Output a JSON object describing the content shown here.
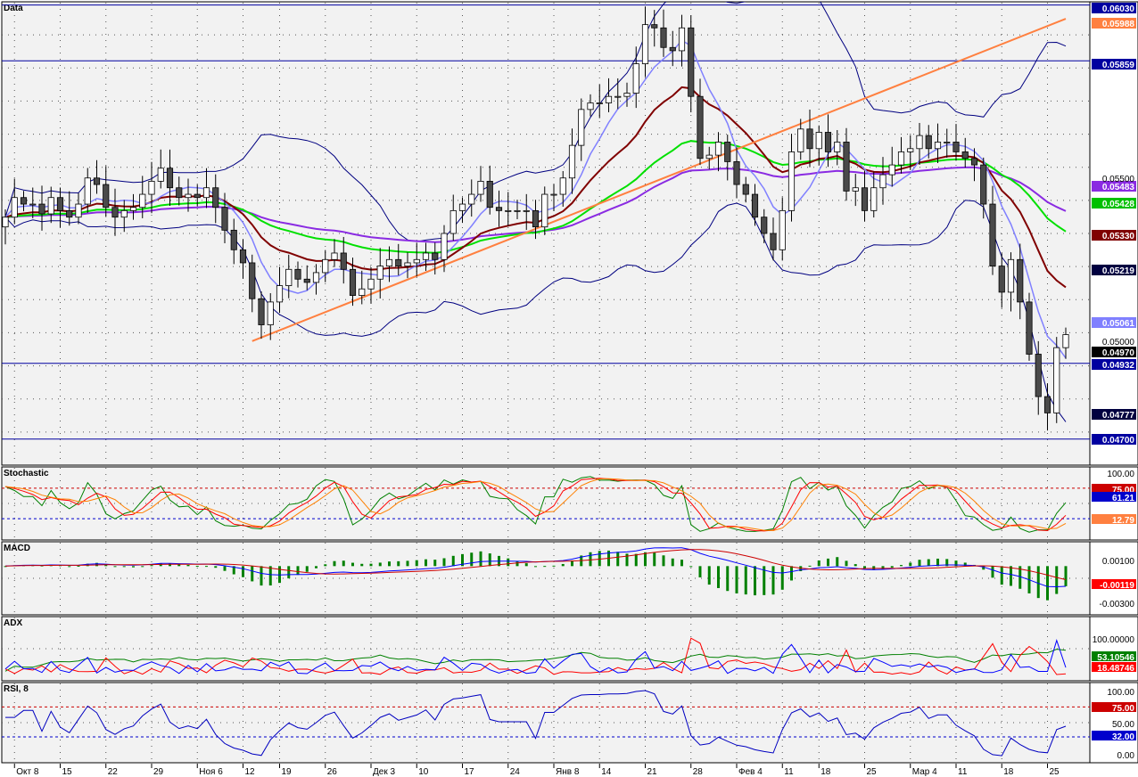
{
  "colors": {
    "background": "#f2f2f2",
    "grid": "#555555",
    "hline": "#0000a0",
    "candle_up": "#ffffff",
    "candle_down": "#4a4a4a",
    "ma_fast": "#8080ff",
    "ma_mid": "#800000",
    "ma_green": "#00e000",
    "ma_slow": "#8a2be2",
    "bollinger": "#000080",
    "trendline": "#ff8040"
  },
  "x_axis_labels": [
    "Окт 8",
    "15",
    "22",
    "29",
    "Ноя 6",
    "12",
    "19",
    "26",
    "Дек 3",
    "10",
    "17",
    "24",
    "Янв 8",
    "14",
    "21",
    "28",
    "Фев 4",
    "11",
    "18",
    "25",
    "Мар 4",
    "11",
    "18",
    "25"
  ],
  "chart_data": [
    {
      "type": "candlestick",
      "title": "Data",
      "ylim": [
        0.0462,
        0.0604
      ],
      "y_ticks": [
        "0.05000",
        "0.05500",
        "0.05988",
        "0.06030"
      ],
      "horizontal_lines": [
        0.0603,
        0.05859,
        0.04932,
        0.047
      ],
      "price_tags": [
        {
          "text": "0.06030",
          "color": "#0000a0"
        },
        {
          "text": "0.05988",
          "color": "#ff8040"
        },
        {
          "text": "0.05859",
          "color": "#0000a0"
        },
        {
          "text": "0.05483",
          "color": "#8a2be2"
        },
        {
          "text": "0.05428",
          "color": "#00c000"
        },
        {
          "text": "0.05330",
          "color": "#800000"
        },
        {
          "text": "0.05219",
          "color": "#000040"
        },
        {
          "text": "0.05061",
          "color": "#8080ff"
        },
        {
          "text": "0.04970",
          "color": "#000000"
        },
        {
          "text": "0.04932",
          "color": "#0000a0"
        },
        {
          "text": "0.04777",
          "color": "#000040"
        },
        {
          "text": "0.04700",
          "color": "#0000a0"
        }
      ],
      "close": [
        0.0538,
        0.0544,
        0.0542,
        0.0542,
        0.0539,
        0.0544,
        0.054,
        0.0538,
        0.0542,
        0.055,
        0.0548,
        0.0541,
        0.0538,
        0.054,
        0.0541,
        0.0545,
        0.0549,
        0.0553,
        0.0547,
        0.0544,
        0.0545,
        0.0544,
        0.0547,
        0.0541,
        0.0534,
        0.0528,
        0.0524,
        0.0513,
        0.0505,
        0.0512,
        0.0517,
        0.0522,
        0.0519,
        0.0518,
        0.0521,
        0.0525,
        0.0527,
        0.0522,
        0.0514,
        0.0516,
        0.0519,
        0.0523,
        0.0525,
        0.0523,
        0.0524,
        0.0525,
        0.0527,
        0.0525,
        0.0533,
        0.054,
        0.0542,
        0.0545,
        0.0549,
        0.0541,
        0.054,
        0.054,
        0.054,
        0.054,
        0.0535,
        0.0545,
        0.0545,
        0.055,
        0.056,
        0.0571,
        0.0573,
        0.0573,
        0.0575,
        0.0575,
        0.0576,
        0.0585,
        0.0597,
        0.0596,
        0.059,
        0.0589,
        0.0596,
        0.0575,
        0.0556,
        0.0557,
        0.0561,
        0.0555,
        0.0548,
        0.0545,
        0.0538,
        0.0533,
        0.0528,
        0.054,
        0.0558,
        0.0565,
        0.0559,
        0.0564,
        0.0558,
        0.0561,
        0.0546,
        0.0547,
        0.054,
        0.0547,
        0.0551,
        0.0554,
        0.0558,
        0.0559,
        0.0563,
        0.0559,
        0.0561,
        0.0561,
        0.0558,
        0.0556,
        0.0554,
        0.0542,
        0.0523,
        0.0515,
        0.0525,
        0.0512,
        0.0496,
        0.0483,
        0.0478,
        0.0498,
        0.0502
      ]
    },
    {
      "type": "line",
      "title": "Stochastic",
      "ylim": [
        -10,
        110
      ],
      "y_ticks": [
        "100.00"
      ],
      "levels": [
        75,
        25
      ],
      "level_tags": [
        {
          "text": "75.00",
          "color": "#cc0000"
        },
        {
          "text": "61.21",
          "color": "#0000cc"
        },
        {
          "text": "12.79",
          "color": "#ff8040"
        }
      ],
      "series_colors": [
        "#008000",
        "#ff0000",
        "#ff8000"
      ]
    },
    {
      "type": "line",
      "title": "MACD",
      "ylim": [
        -0.004,
        0.002
      ],
      "y_ticks": [
        "0.00100",
        "-0.00300"
      ],
      "value_tag": {
        "text": "-0.00119",
        "color": "#ff0000"
      },
      "series_colors": [
        "#0000ff",
        "#cc0000",
        "#008000"
      ]
    },
    {
      "type": "line",
      "title": "ADX",
      "ylim": [
        -5,
        130
      ],
      "y_ticks": [
        "100.00000"
      ],
      "value_tags": [
        {
          "text": "53.10546",
          "color": "#008000"
        },
        {
          "text": "18.48746",
          "color": "#ff0000"
        }
      ],
      "series_colors": [
        "#008000",
        "#ff0000",
        "#0000ff"
      ]
    },
    {
      "type": "line",
      "title": "RSI, 8",
      "ylim": [
        -5,
        110
      ],
      "y_ticks": [
        "100.00",
        "50.00",
        "0.00"
      ],
      "levels": [
        75,
        32
      ],
      "level_tags": [
        {
          "text": "75.00",
          "color": "#cc0000"
        },
        {
          "text": "32.00",
          "color": "#0000cc"
        }
      ],
      "series_colors": [
        "#0000c0"
      ]
    }
  ]
}
